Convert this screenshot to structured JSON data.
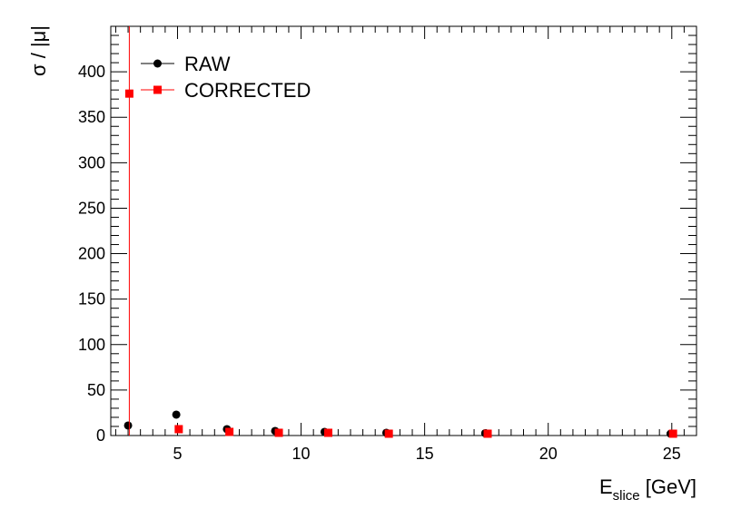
{
  "chart_data": {
    "type": "scatter",
    "xlabel_main": "E",
    "xlabel_sub": "slice",
    "xlabel_unit": " [GeV]",
    "ylabel": "σ / |μ|",
    "xlim": [
      2.3,
      26.0
    ],
    "ylim": [
      0,
      450
    ],
    "xticks": [
      5,
      10,
      15,
      20,
      25
    ],
    "yticks": [
      0,
      50,
      100,
      150,
      200,
      250,
      300,
      350,
      400
    ],
    "legend_position": "top-left",
    "series": [
      {
        "name": "RAW",
        "color": "#000000",
        "marker": "circle",
        "points": [
          {
            "x": 3.0,
            "y": 11
          },
          {
            "x": 4.95,
            "y": 23
          },
          {
            "x": 7.0,
            "y": 7
          },
          {
            "x": 8.95,
            "y": 5
          },
          {
            "x": 10.95,
            "y": 4
          },
          {
            "x": 13.45,
            "y": 3
          },
          {
            "x": 17.45,
            "y": 2.5
          },
          {
            "x": 24.95,
            "y": 2
          }
        ]
      },
      {
        "name": "CORRECTED",
        "color": "#ff0000",
        "marker": "square",
        "points": [
          {
            "x": 3.05,
            "y": 376,
            "err_low": 376,
            "err_high": 450
          },
          {
            "x": 5.05,
            "y": 7
          },
          {
            "x": 7.1,
            "y": 4
          },
          {
            "x": 9.1,
            "y": 3
          },
          {
            "x": 11.1,
            "y": 3
          },
          {
            "x": 13.55,
            "y": 2
          },
          {
            "x": 17.55,
            "y": 2
          },
          {
            "x": 25.05,
            "y": 2
          }
        ]
      }
    ]
  }
}
